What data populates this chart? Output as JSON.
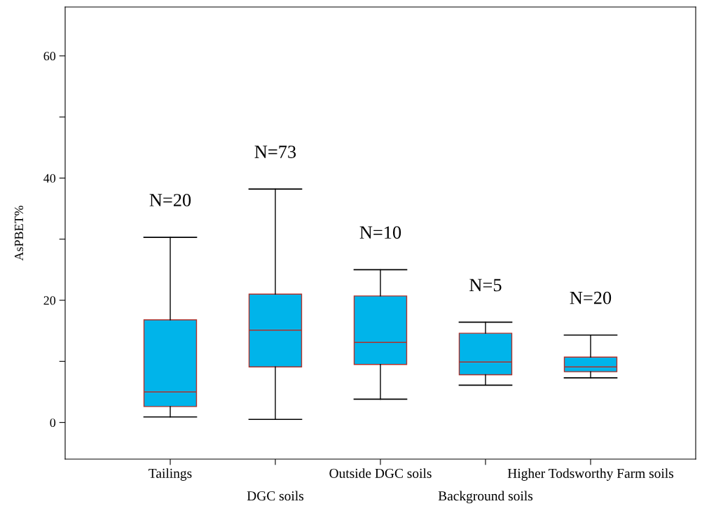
{
  "chart_data": {
    "type": "box",
    "ylabel": "AsPBET%",
    "categories": [
      "Tailings",
      "DGC soils",
      "Outside DGC soils",
      "Background soils",
      "Higher Todsworthy Farm soils"
    ],
    "series": [
      {
        "color": "#00b4ea",
        "boxes": [
          {
            "low": 0.9,
            "q1": 2.6,
            "median": 5.0,
            "q3": 16.8,
            "high": 30.3
          },
          {
            "low": 0.5,
            "q1": 9.1,
            "median": 15.1,
            "q3": 21.0,
            "high": 38.2
          },
          {
            "low": 3.8,
            "q1": 9.5,
            "median": 13.1,
            "q3": 20.7,
            "high": 25.0
          },
          {
            "low": 6.1,
            "q1": 7.8,
            "median": 9.9,
            "q3": 14.6,
            "high": 16.4
          },
          {
            "low": 7.3,
            "q1": 8.3,
            "median": 9.1,
            "q3": 10.7,
            "high": 14.3
          }
        ]
      }
    ],
    "ylim": [
      -6,
      68
    ],
    "yticks": [
      0,
      {
        "value": 10,
        "label": null
      },
      20,
      {
        "value": 30,
        "label": null
      },
      40,
      {
        "value": 50,
        "label": null
      },
      60
    ],
    "grid": false,
    "annotations": [
      "N=20",
      "N=73",
      "N=10",
      "N=5",
      "N=20"
    ]
  }
}
